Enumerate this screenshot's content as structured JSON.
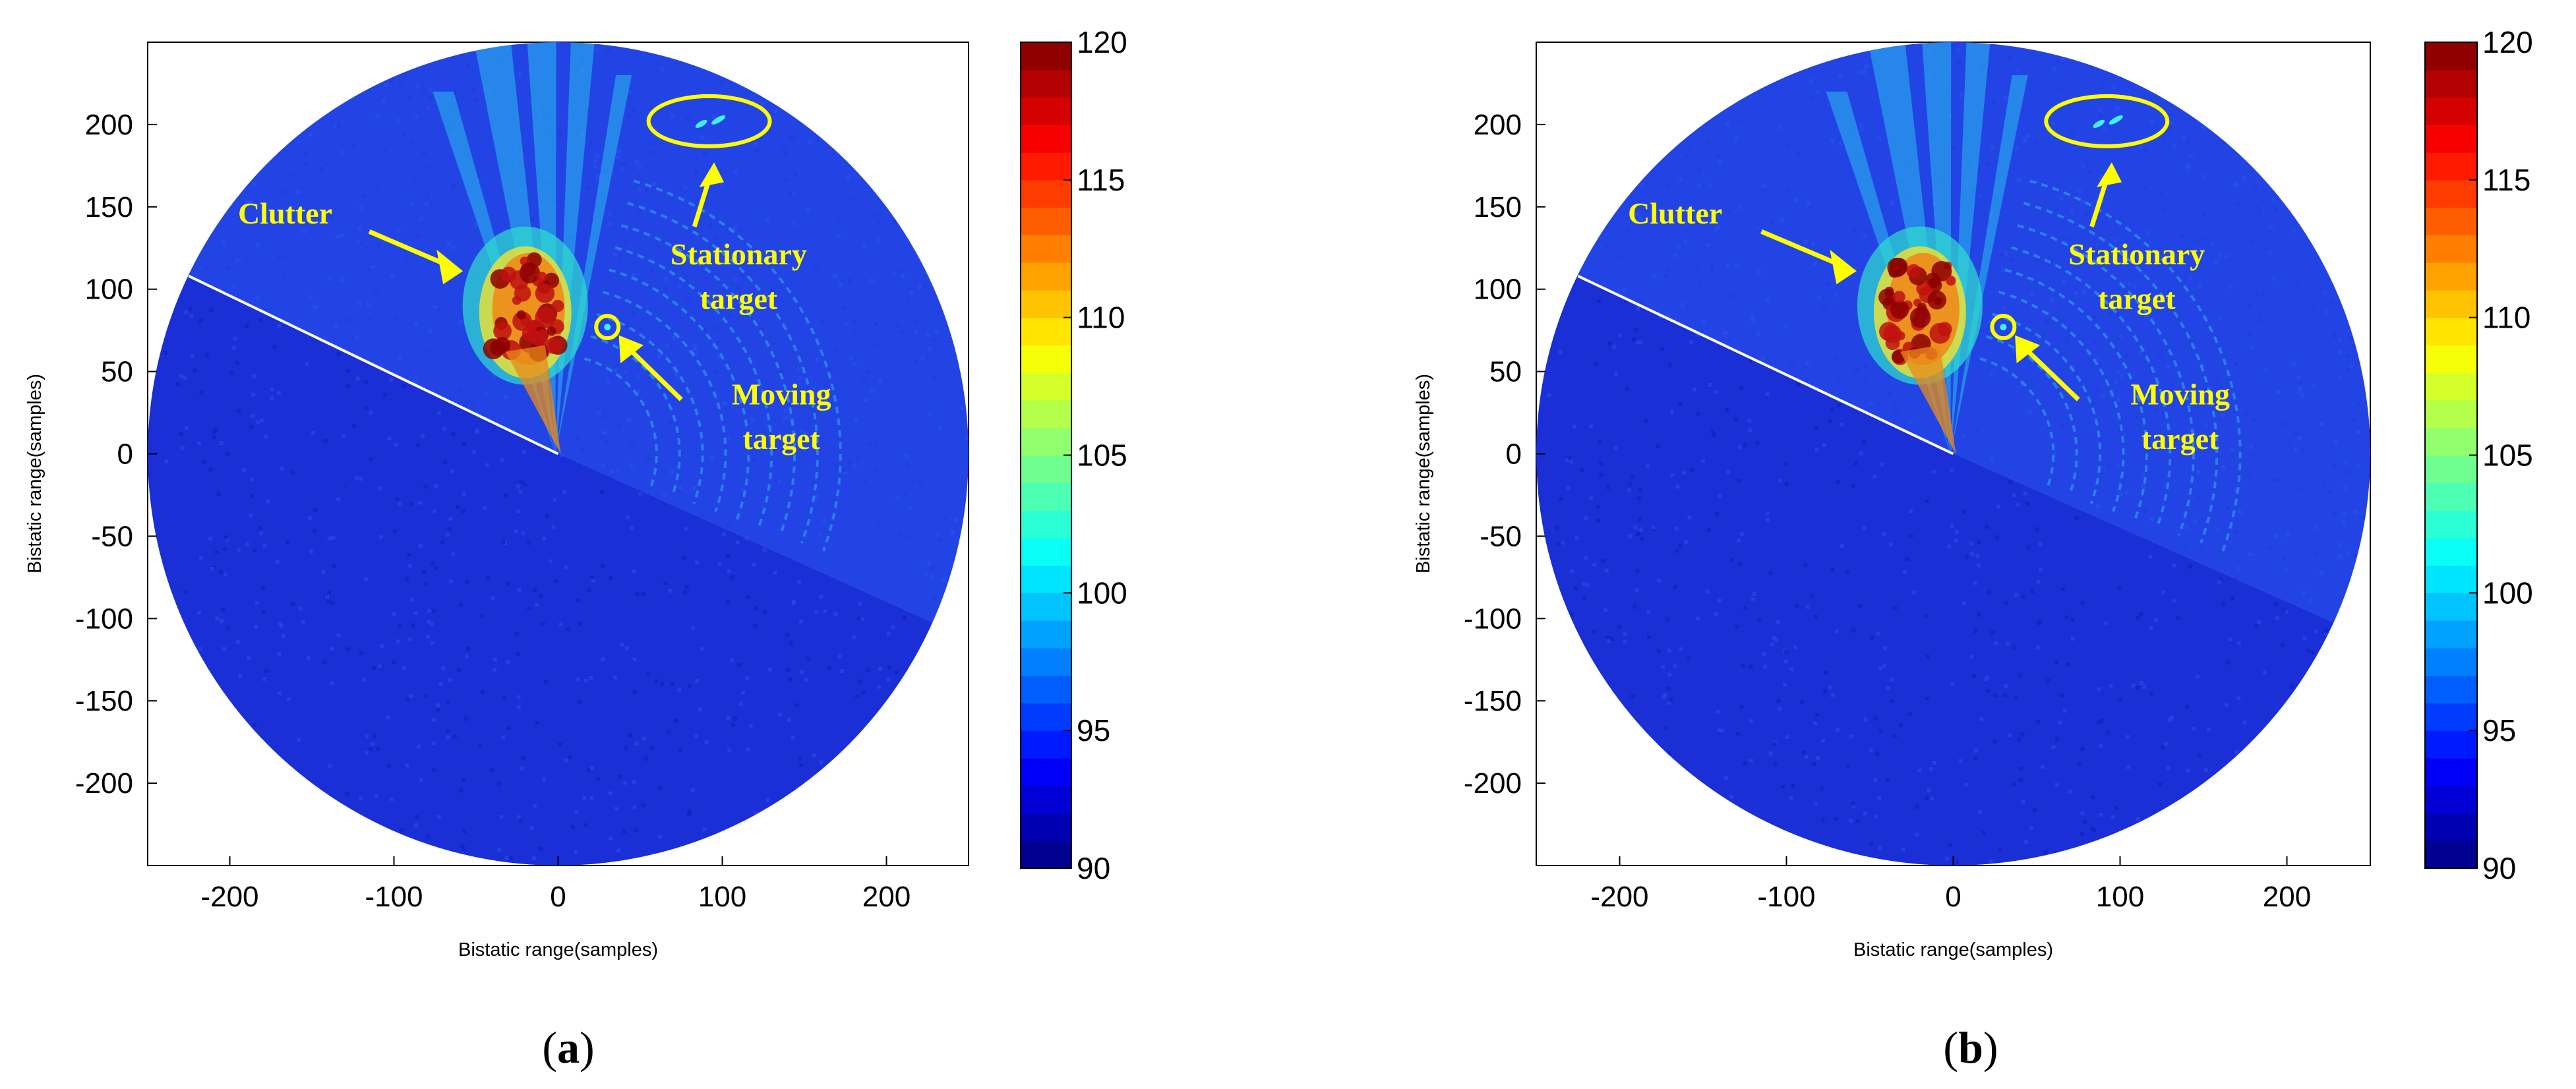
{
  "chart_data": [
    {
      "type": "heatmap",
      "panel_label": "a",
      "xlabel": "Bistatic range(samples)",
      "ylabel": "Bistatic range(samples)",
      "xlim": [
        -250,
        250
      ],
      "ylim": [
        -250,
        250
      ],
      "xticks": [
        -200,
        -100,
        0,
        100,
        200
      ],
      "yticks": [
        200,
        150,
        100,
        50,
        0,
        -50,
        -100,
        -150,
        -200
      ],
      "colorbar": {
        "min": 90,
        "max": 120,
        "ticks": [
          120,
          115,
          110,
          105,
          100,
          95,
          90
        ],
        "colormap": "jet",
        "levels": 30
      },
      "grid": false,
      "annotations": {
        "clutter": "Clutter",
        "stationary_line1": "Stationary",
        "stationary_line2": "target",
        "moving_line1": "Moving",
        "moving_line2": "target"
      },
      "features": {
        "stationary_target": {
          "x": 92,
          "y": 202
        },
        "moving_target": {
          "x": 30,
          "y": 77
        },
        "clutter_center": {
          "x": -20,
          "y": 90
        },
        "blind_line_from": {
          "x": -225,
          "y": 108
        },
        "blind_line_to": {
          "x": 0,
          "y": 0
        }
      }
    },
    {
      "type": "heatmap",
      "panel_label": "b",
      "xlabel": "Bistatic range(samples)",
      "ylabel": "Bistatic range(samples)",
      "xlim": [
        -250,
        250
      ],
      "ylim": [
        -250,
        250
      ],
      "xticks": [
        -200,
        -100,
        0,
        100,
        200
      ],
      "yticks": [
        200,
        150,
        100,
        50,
        0,
        -50,
        -100,
        -150,
        -200
      ],
      "colorbar": {
        "min": 90,
        "max": 120,
        "ticks": [
          120,
          115,
          110,
          105,
          100,
          95,
          90
        ],
        "colormap": "jet",
        "levels": 30
      },
      "grid": false,
      "annotations": {
        "clutter": "Clutter",
        "stationary_line1": "Stationary",
        "stationary_line2": "target",
        "moving_line1": "Moving",
        "moving_line2": "target"
      },
      "features": {
        "stationary_target": {
          "x": 92,
          "y": 202
        },
        "moving_target": {
          "x": 30,
          "y": 77
        },
        "clutter_center": {
          "x": -20,
          "y": 90
        },
        "blind_line_from": {
          "x": -225,
          "y": 108
        },
        "blind_line_to": {
          "x": 0,
          "y": 0
        }
      }
    }
  ]
}
